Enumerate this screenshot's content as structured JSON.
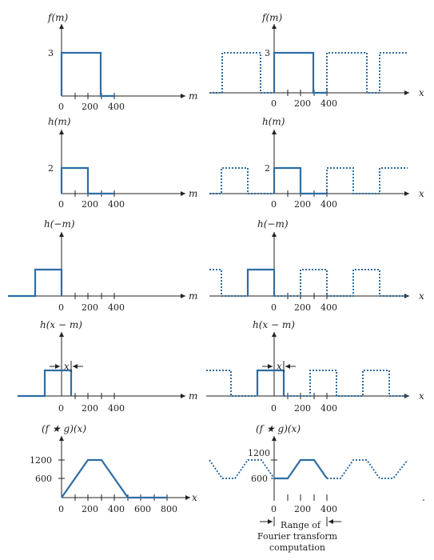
{
  "colors": {
    "signal": "#2e6da4",
    "axis": "#222222"
  },
  "panels": [
    {
      "label": "f(m)",
      "yticks": [
        "3"
      ],
      "xvar": "m",
      "xticks": [
        "0",
        "200",
        "400"
      ],
      "rlabel": "f(m)",
      "ryticks": [
        "3"
      ],
      "rxvar": "x",
      "rxticks": [
        "0",
        "200",
        "400"
      ]
    },
    {
      "label": "h(m)",
      "yticks": [
        "2"
      ],
      "xvar": "m",
      "xticks": [
        "0",
        "200",
        "400"
      ],
      "rlabel": "h(m)",
      "ryticks": [
        "2"
      ],
      "rxvar": "x",
      "rxticks": [
        "0",
        "200",
        "400"
      ]
    },
    {
      "label": "h(−m)",
      "yticks": [],
      "xvar": "m",
      "xticks": [
        "0",
        "200",
        "400"
      ],
      "rlabel": "h(−m)",
      "ryticks": [],
      "rxvar": "x",
      "rxticks": [
        "0",
        "200",
        "400"
      ]
    },
    {
      "label": "h(x − m)",
      "yticks": [],
      "xvar": "m",
      "xticks": [
        "0",
        "200",
        "400"
      ],
      "shift": "x",
      "rlabel": "h(x − m)",
      "ryticks": [],
      "rxvar": "x",
      "rxticks": [
        "0",
        "200",
        "400"
      ],
      "rshift": "x"
    },
    {
      "label": "(f ★ g)(x)",
      "yticks": [
        "1200",
        "600"
      ],
      "xvar": "x",
      "xticks": [
        "0",
        "200",
        "400",
        "600",
        "800"
      ],
      "rlabel": "(f ★ g)(x)",
      "ryticks": [
        "1200",
        "600"
      ],
      "rxvar": "x",
      "rxticks": [
        "0",
        "200",
        "400"
      ]
    }
  ],
  "range_note": [
    "Range of",
    "Fourier transform",
    "computation"
  ]
}
